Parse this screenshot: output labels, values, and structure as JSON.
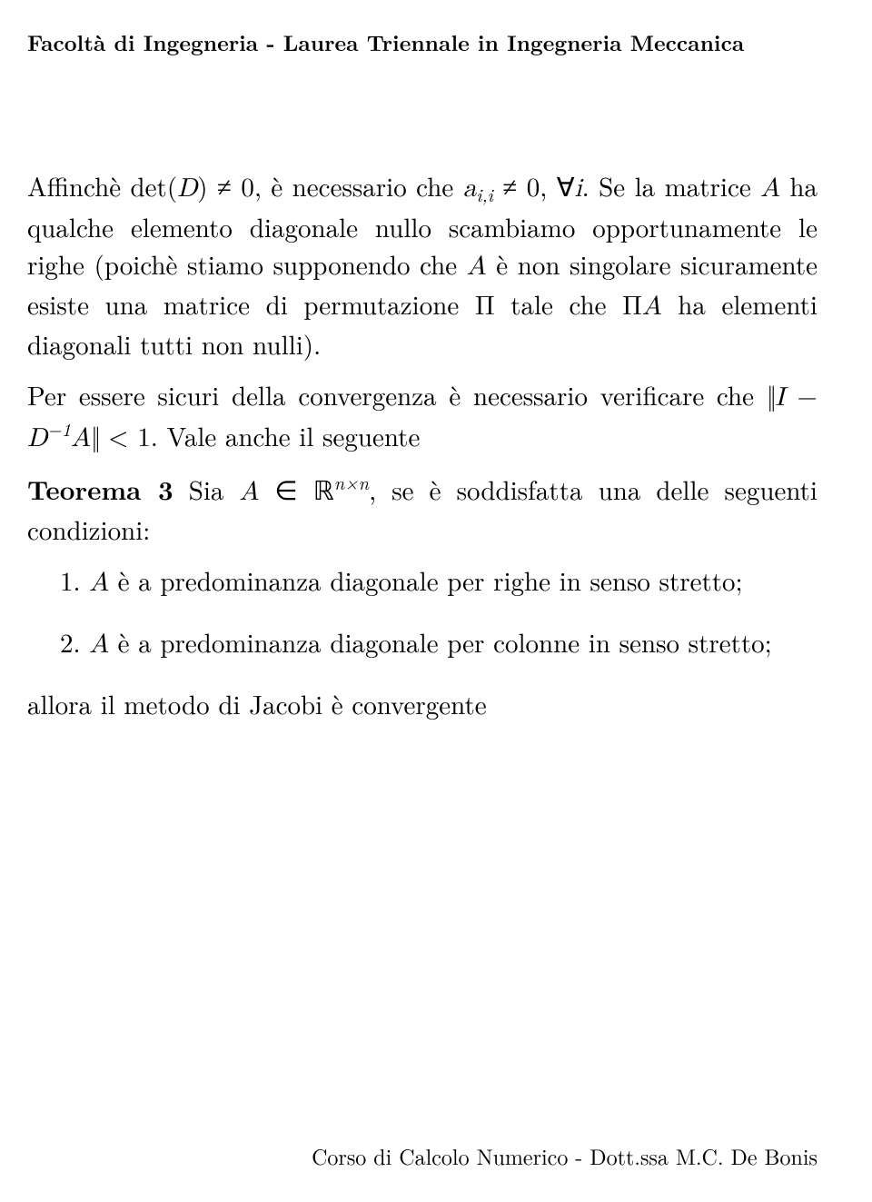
{
  "header": "Facoltà di Ingegneria - Laurea Triennale in Ingegneria Meccanica",
  "footer": "Corso di Calcolo Numerico - Dott.ssa M.C. De Bonis",
  "p1_a": "Affinchè det(",
  "p1_b": ") ≠ 0, è necessario che ",
  "p1_c": " ≠ 0, ∀",
  "p1_d": ". Se la matrice ",
  "p1_e": " ha qualche elemento diagonale nullo scambiamo opportunamente le righe (poichè stiamo supponendo che ",
  "p1_f": " è non singolare sicuramente esiste una matrice di permutazione Π tale che Π",
  "p1_g": " ha elementi diagonali tutti non nulli).",
  "p2_a": "Per essere sicuri della convergenza è necessario verificare che ",
  "p2_b": " < 1. Vale anche il seguente",
  "t3_label": "Teorema 3",
  "t3_a": "  Sia ",
  "t3_b": " ∈ ",
  "t3_c": ", se è soddisfatta una delle seguenti condizioni:",
  "li1_num": "1. ",
  "li1_a": " è a predominanza diagonale per righe in senso stretto;",
  "li2_num": "2. ",
  "li2_a": " è a predominanza diagonale per colonne in senso stretto;",
  "conc": "allora il metodo di Jacobi è convergente",
  "sym": {
    "D": "D",
    "A": "A",
    "a": "a",
    "ii": "i,i",
    "i": "i",
    "I": "I",
    "minus1": "−1",
    "R": "ℝ",
    "nxn": "n×n",
    "norm": "‖"
  }
}
